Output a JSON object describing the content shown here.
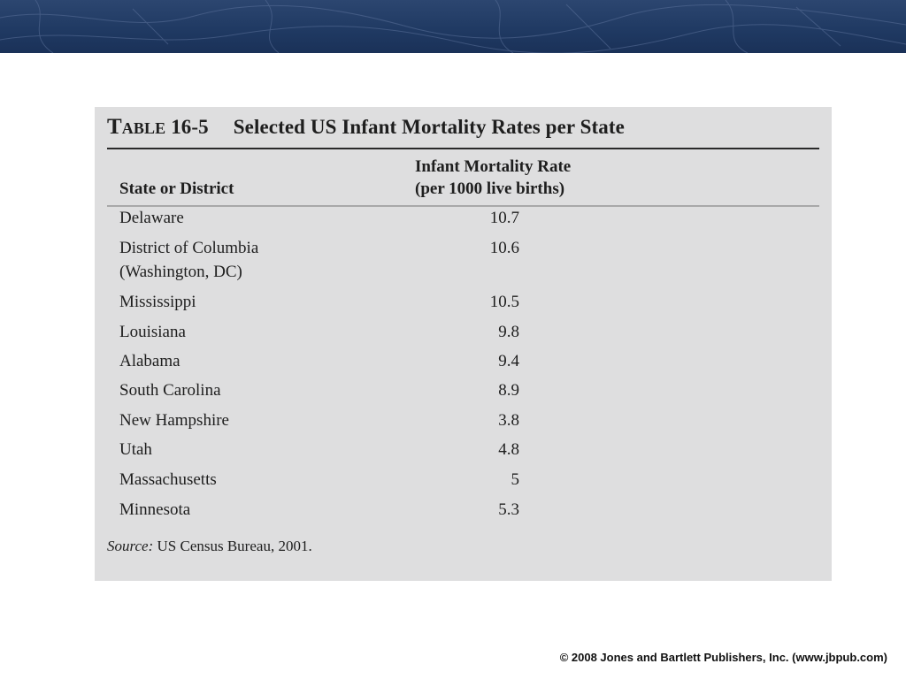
{
  "banner": {
    "color": "#203a63"
  },
  "table": {
    "number_word": "Table",
    "number": "16-5",
    "title": "Selected US Infant Mortality Rates per State",
    "columns": {
      "state": "State or District",
      "rate_line1": "Infant Mortality Rate",
      "rate_line2": "(per 1000 live births)"
    },
    "rows": [
      {
        "state": "Delaware",
        "rate": "10.7"
      },
      {
        "state": "District of Columbia",
        "state_line2": "(Washington, DC)",
        "rate": "10.6"
      },
      {
        "state": "Mississippi",
        "rate": "10.5"
      },
      {
        "state": "Louisiana",
        "rate": "9.8"
      },
      {
        "state": "Alabama",
        "rate": "9.4"
      },
      {
        "state": "South Carolina",
        "rate": "8.9"
      },
      {
        "state": "New Hampshire",
        "rate": "3.8"
      },
      {
        "state": "Utah",
        "rate": "4.8"
      },
      {
        "state": "Massachusetts",
        "rate": "5"
      },
      {
        "state": "Minnesota",
        "rate": "5.3"
      }
    ],
    "source_label": "Source:",
    "source_text": "US Census Bureau, 2001."
  },
  "footer": {
    "copyright": "© 2008 Jones and Bartlett Publishers, Inc. (www.jbpub.com)"
  }
}
